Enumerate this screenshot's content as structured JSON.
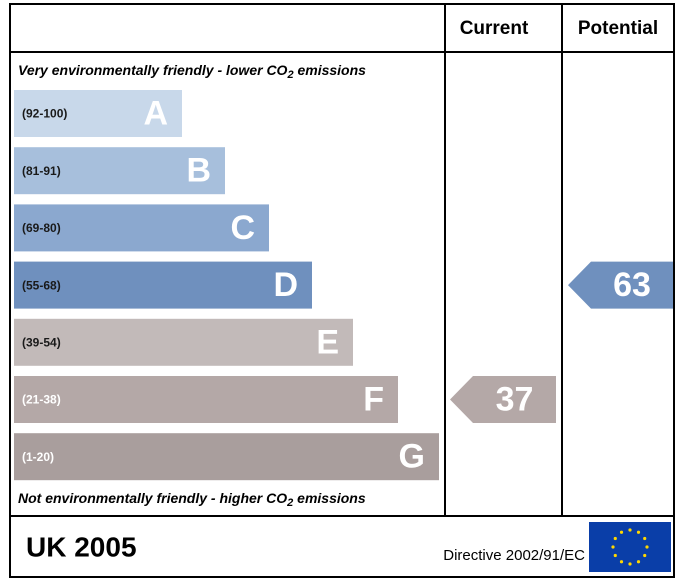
{
  "header": {
    "current": "Current",
    "potential": "Potential"
  },
  "top_note": {
    "text": "Very environmentally friendly - lower CO",
    "sub": "2",
    "rest": " emissions"
  },
  "bottom_note": {
    "text": "Not environmentally friendly - higher CO",
    "sub": "2",
    "rest": " emissions"
  },
  "bands": [
    {
      "range": "(92-100)",
      "letter": "A",
      "color": "#c8d8ea",
      "range_color": "#1a1a1a"
    },
    {
      "range": "(81-91)",
      "letter": "B",
      "color": "#a7bfdc",
      "range_color": "#1a1a1a"
    },
    {
      "range": "(69-80)",
      "letter": "C",
      "color": "#8ba8cf",
      "range_color": "#1a1a1a"
    },
    {
      "range": "(55-68)",
      "letter": "D",
      "color": "#6f90be",
      "range_color": "#1a1a1a"
    },
    {
      "range": "(39-54)",
      "letter": "E",
      "color": "#c2bab9",
      "range_color": "#1a1a1a"
    },
    {
      "range": "(21-38)",
      "letter": "F",
      "color": "#b4a8a7",
      "range_color": "#ffffff"
    },
    {
      "range": "(1-20)",
      "letter": "G",
      "color": "#a99e9d",
      "range_color": "#ffffff"
    }
  ],
  "current": 37,
  "potential": 63,
  "footer": {
    "country": "UK 2005",
    "directive": "Directive 2002/91/EC"
  }
}
